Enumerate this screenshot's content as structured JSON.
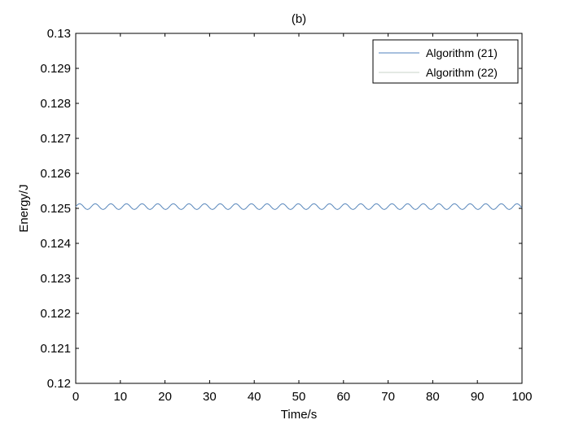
{
  "chart_data": {
    "type": "line",
    "title": "(b)",
    "xlabel": "Time/s",
    "ylabel": "Energy/J",
    "xlim": [
      0,
      100
    ],
    "ylim": [
      0.12,
      0.13
    ],
    "xticks": [
      0,
      10,
      20,
      30,
      40,
      50,
      60,
      70,
      80,
      90,
      100
    ],
    "xtick_labels": [
      "0",
      "10",
      "20",
      "30",
      "40",
      "50",
      "60",
      "70",
      "80",
      "90",
      "100"
    ],
    "yticks": [
      0.12,
      0.121,
      0.122,
      0.123,
      0.124,
      0.125,
      0.126,
      0.127,
      0.128,
      0.129,
      0.13
    ],
    "ytick_labels": [
      "0.12",
      "0.121",
      "0.122",
      "0.123",
      "0.124",
      "0.125",
      "0.126",
      "0.127",
      "0.128",
      "0.129",
      "0.13"
    ],
    "grid": false,
    "legend_position": "top-right",
    "series": [
      {
        "name": "Algorithm (21)",
        "color": "#4f81bd",
        "mean": 0.12505,
        "amplitude": 8e-05,
        "period": 3.5
      },
      {
        "name": "Algorithm (22)",
        "color": "#c8d3c8",
        "mean": 0.12505,
        "amplitude": 8e-05,
        "period": 3.5
      }
    ]
  }
}
